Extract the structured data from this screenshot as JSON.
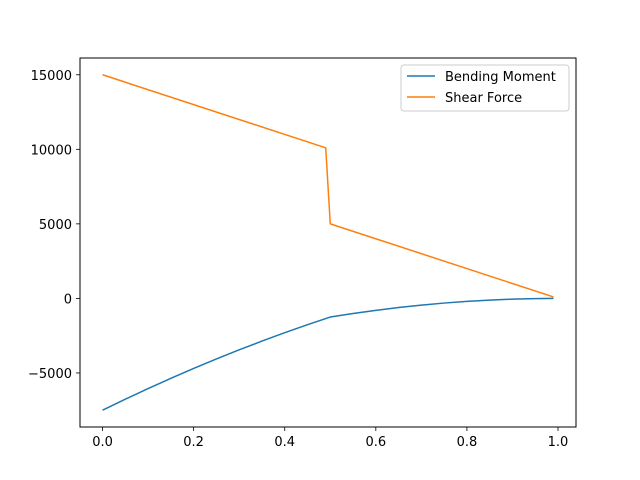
{
  "chart_data": {
    "type": "line",
    "title": "",
    "xlabel": "",
    "ylabel": "",
    "xlim": [
      -0.0495,
      1.0395
    ],
    "ylim": [
      -8625,
      16125
    ],
    "xticks": [
      0.0,
      0.2,
      0.4,
      0.6,
      0.8,
      1.0
    ],
    "xtick_labels": [
      "0.0",
      "0.2",
      "0.4",
      "0.6",
      "0.8",
      "1.0"
    ],
    "yticks": [
      -5000,
      0,
      5000,
      10000,
      15000
    ],
    "ytick_labels": [
      "−5000",
      "0",
      "5000",
      "10000",
      "15000"
    ],
    "grid": false,
    "legend_position": "upper right",
    "series": [
      {
        "name": "Bending Moment",
        "color": "#1f77b4",
        "x": [
          0.0,
          0.05,
          0.1,
          0.15,
          0.2,
          0.25,
          0.3,
          0.35,
          0.4,
          0.45,
          0.5,
          0.55,
          0.6,
          0.65,
          0.7,
          0.75,
          0.8,
          0.85,
          0.9,
          0.95,
          0.99
        ],
        "y": [
          -7500,
          -6762,
          -6050,
          -5362,
          -4700,
          -4062,
          -3450,
          -2862,
          -2300,
          -1762,
          -1250,
          -1012,
          -800,
          -612,
          -450,
          -312,
          -200,
          -112,
          -50,
          -12,
          0
        ]
      },
      {
        "name": "Shear Force",
        "color": "#ff7f0e",
        "x": [
          0.0,
          0.49,
          0.5,
          0.99
        ],
        "y": [
          15000,
          10100,
          5000,
          100
        ]
      }
    ]
  }
}
